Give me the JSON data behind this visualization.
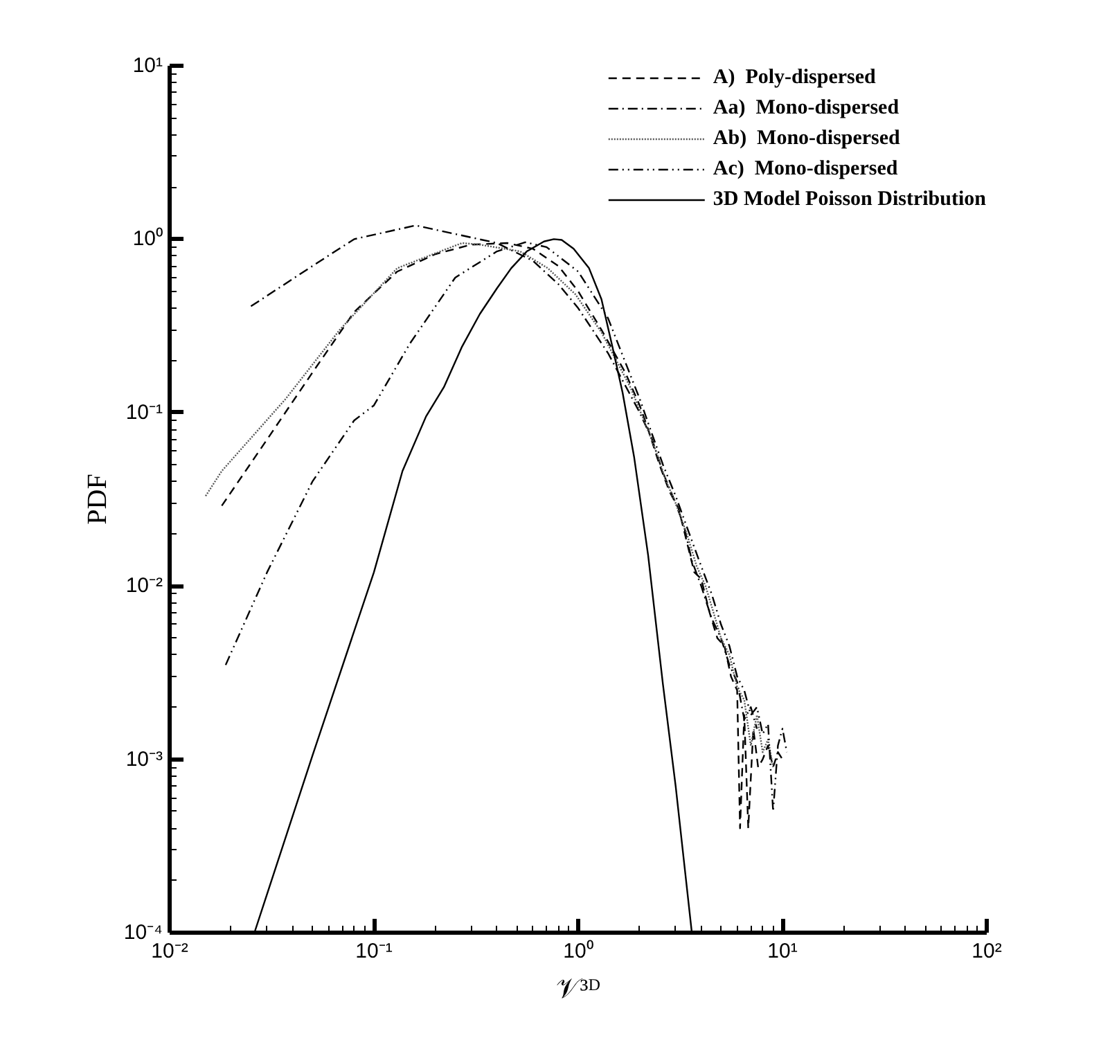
{
  "chart_data": {
    "type": "line",
    "xlabel": "𝒱³ᴰ",
    "ylabel": "PDF",
    "log": "xy",
    "grid": false,
    "legend": "top right",
    "xlim": [
      0.01,
      100
    ],
    "ylim": [
      0.0001,
      10
    ],
    "xticks": [
      {
        "value": 0.01,
        "label": "10⁻²"
      },
      {
        "value": 0.1,
        "label": "10⁻¹"
      },
      {
        "value": 1,
        "label": "10⁰"
      },
      {
        "value": 10,
        "label": "10¹"
      },
      {
        "value": 100,
        "label": "10²"
      }
    ],
    "yticks": [
      {
        "value": 0.0001,
        "label": "10⁻⁴"
      },
      {
        "value": 0.001,
        "label": "10⁻³"
      },
      {
        "value": 0.01,
        "label": "10⁻²"
      },
      {
        "value": 0.1,
        "label": "10⁻¹"
      },
      {
        "value": 1,
        "label": "10⁰"
      },
      {
        "value": 10,
        "label": "10¹"
      }
    ],
    "series": [
      {
        "name": "A)  Poly-dispersed",
        "color": "#000000",
        "line_style": "dashed",
        "x": [
          0.018,
          0.03,
          0.05,
          0.08,
          0.13,
          0.2,
          0.3,
          0.45,
          0.6,
          0.8,
          1.0,
          1.3,
          1.7,
          2.0,
          2.2,
          2.5,
          2.8,
          3.1,
          3.4,
          3.7,
          4.0,
          4.4,
          4.8,
          5.2,
          5.6,
          6.0,
          6.2,
          6.5,
          6.8,
          7.2,
          7.6,
          8.0,
          8.5,
          9.0,
          9.5,
          10.0
        ],
        "values": [
          0.029,
          0.07,
          0.17,
          0.38,
          0.65,
          0.82,
          0.93,
          0.95,
          0.88,
          0.7,
          0.5,
          0.3,
          0.17,
          0.11,
          0.08,
          0.05,
          0.035,
          0.028,
          0.018,
          0.012,
          0.011,
          0.007,
          0.005,
          0.0045,
          0.003,
          0.0025,
          0.0004,
          0.0018,
          0.0004,
          0.0015,
          0.0009,
          0.001,
          0.0012,
          0.0009,
          0.0011,
          0.001
        ]
      },
      {
        "name": "Aa)  Mono-dispersed",
        "color": "#000000",
        "line_style": "dashdot",
        "x": [
          0.025,
          0.05,
          0.08,
          0.16,
          0.4,
          0.6,
          0.8,
          1.0,
          1.4,
          2.0,
          2.3,
          2.6,
          3.0,
          3.3,
          3.6,
          4.0,
          4.5,
          5.0,
          5.5,
          6.0,
          6.5,
          7.0,
          7.5
        ],
        "values": [
          0.41,
          0.7,
          1.0,
          1.2,
          0.95,
          0.75,
          0.55,
          0.4,
          0.22,
          0.1,
          0.07,
          0.045,
          0.03,
          0.022,
          0.014,
          0.01,
          0.0065,
          0.005,
          0.0035,
          0.0028,
          0.0017,
          0.002,
          0.0015
        ]
      },
      {
        "name": "Ab)  Mono-dispersed",
        "color": "#555555",
        "line_style": "dotted",
        "x": [
          0.015,
          0.018,
          0.037,
          0.068,
          0.13,
          0.18,
          0.27,
          0.33,
          0.52,
          0.71,
          0.97,
          1.3,
          1.8,
          2.1,
          2.4,
          2.7,
          3.0,
          3.4,
          3.8,
          4.2,
          4.6,
          5.0,
          5.5,
          6.0,
          6.5,
          7.0,
          7.5,
          8.0,
          8.5,
          9.0
        ],
        "values": [
          0.033,
          0.046,
          0.12,
          0.3,
          0.68,
          0.79,
          0.95,
          0.93,
          0.85,
          0.68,
          0.48,
          0.29,
          0.14,
          0.09,
          0.06,
          0.04,
          0.03,
          0.02,
          0.013,
          0.01,
          0.007,
          0.005,
          0.004,
          0.0026,
          0.0022,
          0.0012,
          0.0018,
          0.0011,
          0.0013,
          0.0009
        ]
      },
      {
        "name": "Ac)  Mono-dispersed",
        "color": "#000000",
        "line_style": "dashdotdot",
        "x": [
          0.0188,
          0.03,
          0.05,
          0.08,
          0.1,
          0.15,
          0.25,
          0.4,
          0.55,
          0.7,
          1.0,
          1.4,
          2.0,
          2.3,
          2.6,
          3.0,
          3.5,
          4.0,
          4.5,
          5.0,
          5.5,
          6.0,
          6.5,
          7.0,
          7.5,
          8.0,
          8.5,
          9.0,
          9.5,
          10.0,
          10.5
        ],
        "values": [
          0.0035,
          0.012,
          0.04,
          0.09,
          0.11,
          0.25,
          0.6,
          0.85,
          0.96,
          0.9,
          0.65,
          0.35,
          0.12,
          0.075,
          0.05,
          0.033,
          0.02,
          0.013,
          0.009,
          0.006,
          0.0045,
          0.003,
          0.0025,
          0.0018,
          0.002,
          0.0014,
          0.0016,
          0.0005,
          0.0012,
          0.0015,
          0.0011
        ]
      },
      {
        "name": "3D Model Poisson Distribution",
        "color": "#000000",
        "line_style": "solid",
        "x": [
          0.026,
          0.05,
          0.1,
          0.138,
          0.18,
          0.22,
          0.27,
          0.33,
          0.4,
          0.47,
          0.56,
          0.68,
          0.76,
          0.83,
          0.95,
          1.13,
          1.3,
          1.47,
          1.65,
          1.88,
          2.2,
          2.6,
          3.0,
          3.6
        ],
        "values": [
          0.0001,
          0.00105,
          0.012,
          0.046,
          0.095,
          0.14,
          0.24,
          0.37,
          0.52,
          0.68,
          0.85,
          0.97,
          1.0,
          0.99,
          0.88,
          0.68,
          0.45,
          0.24,
          0.13,
          0.055,
          0.015,
          0.0027,
          0.0007,
          0.0001
        ]
      }
    ]
  }
}
